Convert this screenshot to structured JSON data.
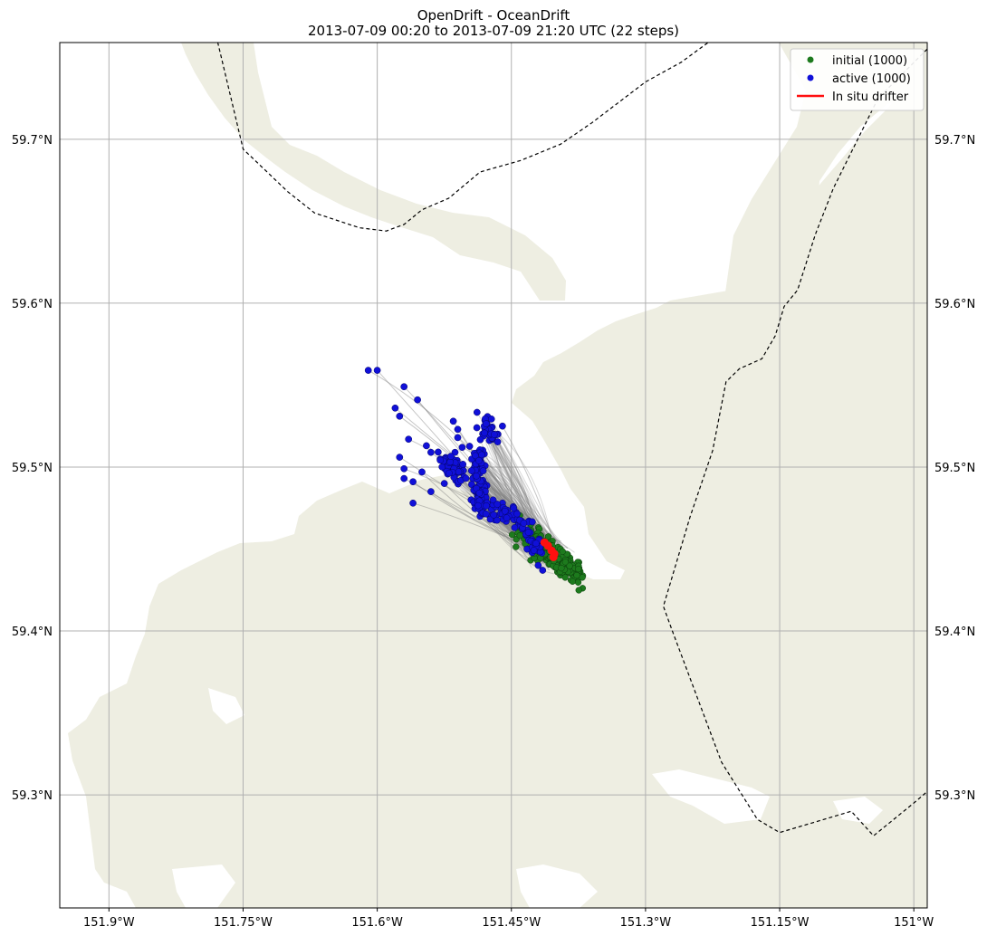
{
  "title": {
    "line1": "OpenDrift - OceanDrift",
    "line2": "2013-07-09 00:20 to 2013-07-09 21:20 UTC (22 steps)"
  },
  "colors": {
    "land": "#eeeee2",
    "grid": "#b0b0b0",
    "initial": "#1d7a1d",
    "active": "#1010d8",
    "drifter": "#ff1010",
    "trajectory": "#808080",
    "boundary": "#000000"
  },
  "legend": {
    "items": [
      {
        "label": "initial (1000)",
        "marker": "dot",
        "color": "#1d7a1d"
      },
      {
        "label": "active (1000)",
        "marker": "dot",
        "color": "#1010d8"
      },
      {
        "label": "In situ drifter",
        "marker": "line",
        "color": "#ff1010"
      }
    ]
  },
  "chart_data": {
    "type": "scatter",
    "projection": "lon-lat",
    "xlim": [
      -151.955,
      -150.985
    ],
    "ylim": [
      59.231,
      59.759
    ],
    "x_ticks": [
      {
        "value": -151.9,
        "label": "151.9°W"
      },
      {
        "value": -151.75,
        "label": "151.75°W"
      },
      {
        "value": -151.6,
        "label": "151.6°W"
      },
      {
        "value": -151.45,
        "label": "151.45°W"
      },
      {
        "value": -151.3,
        "label": "151.3°W"
      },
      {
        "value": -151.15,
        "label": "151.15°W"
      },
      {
        "value": -151.0,
        "label": "151°W"
      }
    ],
    "y_ticks": [
      {
        "value": 59.7,
        "label": "59.7°N"
      },
      {
        "value": 59.6,
        "label": "59.6°N"
      },
      {
        "value": 59.5,
        "label": "59.5°N"
      },
      {
        "value": 59.4,
        "label": "59.4°N"
      },
      {
        "value": 59.3,
        "label": "59.3°N"
      }
    ],
    "grid": true,
    "legend_position": "top-right",
    "series": [
      {
        "name": "initial (1000)",
        "count": 1000,
        "center": [
          -151.407,
          59.447
        ],
        "spread_along": 0.022,
        "spread_across": 0.006,
        "axis_direction": [
          -0.78,
          0.62
        ]
      },
      {
        "name": "active (1000)",
        "count": 1000,
        "representative_points": [
          [
            -151.61,
            59.559
          ],
          [
            -151.6,
            59.559
          ],
          [
            -151.57,
            59.549
          ],
          [
            -151.555,
            59.541
          ],
          [
            -151.58,
            59.536
          ],
          [
            -151.575,
            59.531
          ],
          [
            -151.515,
            59.528
          ],
          [
            -151.51,
            59.523
          ],
          [
            -151.51,
            59.518
          ],
          [
            -151.505,
            59.512
          ],
          [
            -151.565,
            59.517
          ],
          [
            -151.545,
            59.513
          ],
          [
            -151.54,
            59.509
          ],
          [
            -151.575,
            59.506
          ],
          [
            -151.57,
            59.499
          ],
          [
            -151.57,
            59.493
          ],
          [
            -151.56,
            59.491
          ],
          [
            -151.55,
            59.497
          ],
          [
            -151.525,
            59.49
          ],
          [
            -151.513,
            59.509
          ],
          [
            -151.52,
            59.498
          ],
          [
            -151.49,
            59.485
          ],
          [
            -151.495,
            59.48
          ],
          [
            -151.485,
            59.47
          ],
          [
            -151.47,
            59.475
          ],
          [
            -151.46,
            59.478
          ],
          [
            -151.455,
            59.47
          ],
          [
            -151.44,
            59.465
          ],
          [
            -151.433,
            59.458
          ],
          [
            -151.425,
            59.45
          ],
          [
            -151.42,
            59.44
          ],
          [
            -151.415,
            59.437
          ],
          [
            -151.56,
            59.478
          ],
          [
            -151.54,
            59.485
          ],
          [
            -151.465,
            59.52
          ],
          [
            -151.46,
            59.525
          ]
        ],
        "dense_clusters": [
          {
            "from": [
              -151.483,
              59.53
            ],
            "to": [
              -151.472,
              59.518
            ],
            "n": 35
          },
          {
            "from": [
              -151.488,
              59.51
            ],
            "to": [
              -151.483,
              59.475
            ],
            "n": 110
          },
          {
            "from": [
              -151.528,
              59.505
            ],
            "to": [
              -151.5,
              59.492
            ],
            "n": 55
          },
          {
            "from": [
              -151.485,
              59.475
            ],
            "to": [
              -151.44,
              59.468
            ],
            "n": 45
          },
          {
            "from": [
              -151.445,
              59.468
            ],
            "to": [
              -151.42,
              59.45
            ],
            "n": 40
          }
        ]
      },
      {
        "name": "In situ drifter",
        "points": [
          [
            -151.413,
            59.454
          ],
          [
            -151.409,
            59.452
          ],
          [
            -151.405,
            59.449
          ],
          [
            -151.402,
            59.447
          ],
          [
            -151.403,
            59.445
          ]
        ]
      }
    ],
    "boundary_lines": [
      [
        [
          -151.78,
          59.763
        ],
        [
          -151.75,
          59.694
        ],
        [
          -151.7,
          59.668
        ],
        [
          -151.67,
          59.655
        ],
        [
          -151.62,
          59.646
        ],
        [
          -151.59,
          59.644
        ],
        [
          -151.57,
          59.648
        ],
        [
          -151.55,
          59.657
        ],
        [
          -151.52,
          59.664
        ],
        [
          -151.485,
          59.68
        ],
        [
          -151.44,
          59.687
        ],
        [
          -151.395,
          59.697
        ],
        [
          -151.36,
          59.71
        ],
        [
          -151.3,
          59.735
        ],
        [
          -151.26,
          59.747
        ],
        [
          -151.23,
          59.759
        ]
      ],
      [
        [
          -150.985,
          59.755
        ],
        [
          -151.04,
          59.725
        ],
        [
          -151.09,
          59.67
        ],
        [
          -151.11,
          59.642
        ],
        [
          -151.13,
          59.608
        ],
        [
          -151.145,
          59.598
        ],
        [
          -151.155,
          59.58
        ],
        [
          -151.17,
          59.566
        ],
        [
          -151.195,
          59.56
        ],
        [
          -151.21,
          59.552
        ],
        [
          -151.225,
          59.51
        ],
        [
          -151.25,
          59.47
        ],
        [
          -151.28,
          59.415
        ],
        [
          -151.27,
          59.4
        ],
        [
          -151.215,
          59.32
        ],
        [
          -151.175,
          59.285
        ],
        [
          -151.15,
          59.277
        ],
        [
          -151.07,
          59.29
        ],
        [
          -151.045,
          59.275
        ],
        [
          -151.0,
          59.295
        ],
        [
          -150.985,
          59.302
        ]
      ]
    ]
  }
}
